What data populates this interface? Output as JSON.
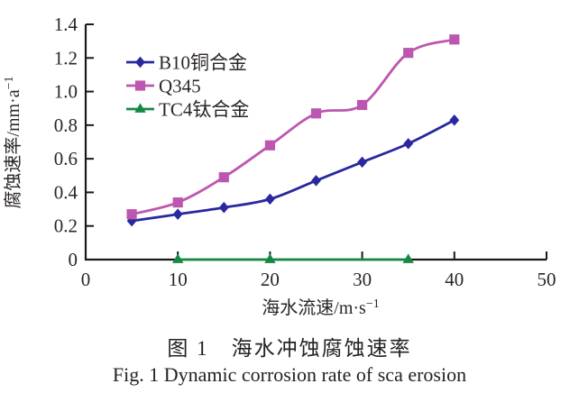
{
  "figure": {
    "caption_zh": "图 1　海水冲蚀腐蚀速率",
    "caption_en": "Fig. 1 Dynamic corrosion rate of sca erosion"
  },
  "chart_data": {
    "type": "line",
    "title": "",
    "xlabel": "海水流速/m·s⁻¹",
    "ylabel": "腐蚀速率/mm·a⁻¹",
    "xlim": [
      0,
      50
    ],
    "ylim": [
      0,
      1.4
    ],
    "xticks": [
      "0",
      "10",
      "20",
      "30",
      "40",
      "50"
    ],
    "yticks": [
      "0",
      "0.2",
      "0.4",
      "0.6",
      "0.8",
      "1.0",
      "1.2",
      "1.4"
    ],
    "grid": false,
    "legend_position": "upper-left-inside",
    "axis_color": "#1a1a1a",
    "text_color": "#2b2627",
    "series": [
      {
        "name": "B10铜合金",
        "color": "#2828a0",
        "marker": "diamond",
        "x": [
          5,
          10,
          15,
          20,
          25,
          30,
          35,
          40
        ],
        "y": [
          0.23,
          0.27,
          0.31,
          0.36,
          0.47,
          0.58,
          0.69,
          0.83
        ]
      },
      {
        "name": "Q345",
        "color": "#bd56b0",
        "marker": "square",
        "x": [
          5,
          10,
          15,
          20,
          25,
          30,
          35,
          40
        ],
        "y": [
          0.27,
          0.34,
          0.49,
          0.68,
          0.87,
          0.92,
          1.23,
          1.31
        ]
      },
      {
        "name": "TC4钛合金",
        "color": "#168846",
        "marker": "triangle",
        "x": [
          10,
          20,
          35
        ],
        "y": [
          0,
          0,
          0
        ]
      }
    ]
  }
}
